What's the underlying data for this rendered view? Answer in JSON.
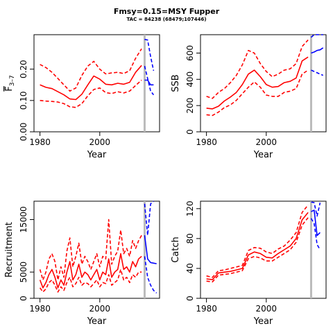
{
  "title": "Fmsy=0.15=MSY Fupper",
  "subtitle": "TAC = 84238 (68479;107446)",
  "colors": {
    "historic": "#ff0000",
    "projection": "#0000ff",
    "marker": "#bbbbbb"
  },
  "chart_data": [
    {
      "type": "line",
      "panel": "top-left",
      "xlabel": "Year",
      "ylabel": "F̅ 3–7",
      "ylabel_main": "F",
      "ylabel_sub": "3–7",
      "xlim": [
        1978,
        2020
      ],
      "ylim": [
        0,
        0.31
      ],
      "x_ticks": [
        1980,
        2000
      ],
      "y_ticks": [
        0.0,
        0.1,
        0.2
      ],
      "y_tick_labels": [
        "0.00",
        "0.10",
        "0.20"
      ],
      "marker_year": 2015,
      "series": [
        {
          "role": "median",
          "style": "solid",
          "color": "#ff0000",
          "x": [
            1980,
            1982,
            1984,
            1986,
            1988,
            1990,
            1992,
            1994,
            1996,
            1998,
            2000,
            2002,
            2004,
            2006,
            2008,
            2010,
            2012,
            2014
          ],
          "y": [
            0.15,
            0.142,
            0.138,
            0.128,
            0.118,
            0.105,
            0.103,
            0.12,
            0.15,
            0.178,
            0.168,
            0.152,
            0.15,
            0.155,
            0.152,
            0.158,
            0.19,
            0.212
          ]
        },
        {
          "role": "upper",
          "style": "dashed",
          "color": "#ff0000",
          "x": [
            1980,
            1982,
            1984,
            1986,
            1988,
            1990,
            1992,
            1994,
            1996,
            1998,
            2000,
            2002,
            2004,
            2006,
            2008,
            2010,
            2012,
            2014
          ],
          "y": [
            0.215,
            0.205,
            0.19,
            0.17,
            0.15,
            0.13,
            0.14,
            0.18,
            0.21,
            0.225,
            0.2,
            0.185,
            0.188,
            0.19,
            0.186,
            0.195,
            0.235,
            0.265
          ]
        },
        {
          "role": "lower",
          "style": "dashed",
          "color": "#ff0000",
          "x": [
            1980,
            1982,
            1984,
            1986,
            1988,
            1990,
            1992,
            1994,
            1996,
            1998,
            2000,
            2002,
            2004,
            2006,
            2008,
            2010,
            2012,
            2014
          ],
          "y": [
            0.1,
            0.098,
            0.097,
            0.095,
            0.09,
            0.08,
            0.078,
            0.09,
            0.115,
            0.135,
            0.14,
            0.125,
            0.122,
            0.128,
            0.124,
            0.13,
            0.148,
            0.165
          ]
        },
        {
          "role": "projection-median",
          "style": "solid",
          "color": "#0000ff",
          "x": [
            2015,
            2016,
            2017,
            2018
          ],
          "y": [
            0.165,
            0.165,
            0.15,
            0.15
          ]
        },
        {
          "role": "projection-upper",
          "style": "dashed",
          "color": "#0000ff",
          "x": [
            2015,
            2016,
            2017,
            2018
          ],
          "y": [
            0.295,
            0.293,
            0.24,
            0.195
          ]
        },
        {
          "role": "projection-lower",
          "style": "dashed",
          "color": "#0000ff",
          "x": [
            2015,
            2016,
            2017,
            2018
          ],
          "y": [
            0.21,
            0.17,
            0.13,
            0.118
          ]
        }
      ]
    },
    {
      "type": "line",
      "panel": "top-right",
      "xlabel": "Year",
      "ylabel": "SSB",
      "xlim": [
        1978,
        2020
      ],
      "ylim": [
        0,
        740
      ],
      "x_ticks": [
        1980,
        2000
      ],
      "y_ticks": [
        0,
        200,
        400,
        600
      ],
      "y_tick_labels": [
        "0",
        "200",
        "400",
        "600"
      ],
      "marker_year": 2015,
      "series": [
        {
          "role": "median",
          "style": "solid",
          "color": "#ff0000",
          "x": [
            1980,
            1982,
            1984,
            1986,
            1988,
            1990,
            1992,
            1994,
            1996,
            1998,
            2000,
            2002,
            2004,
            2006,
            2008,
            2010,
            2012,
            2014
          ],
          "y": [
            180,
            175,
            195,
            235,
            265,
            300,
            360,
            440,
            470,
            420,
            360,
            340,
            345,
            375,
            385,
            410,
            540,
            570
          ]
        },
        {
          "role": "upper",
          "style": "dashed",
          "color": "#ff0000",
          "x": [
            1980,
            1982,
            1984,
            1986,
            1988,
            1990,
            1992,
            1994,
            1996,
            1998,
            2000,
            2002,
            2004,
            2006,
            2008,
            2010,
            2012,
            2014
          ],
          "y": [
            270,
            255,
            300,
            330,
            375,
            430,
            510,
            620,
            600,
            520,
            460,
            420,
            440,
            470,
            480,
            520,
            650,
            700
          ]
        },
        {
          "role": "lower",
          "style": "dashed",
          "color": "#ff0000",
          "x": [
            1980,
            1982,
            1984,
            1986,
            1988,
            1990,
            1992,
            1994,
            1996,
            1998,
            2000,
            2002,
            2004,
            2006,
            2008,
            2010,
            2012,
            2014
          ],
          "y": [
            130,
            125,
            150,
            185,
            205,
            240,
            290,
            340,
            380,
            340,
            280,
            270,
            270,
            300,
            310,
            330,
            440,
            470
          ]
        },
        {
          "role": "projection-median",
          "style": "solid",
          "color": "#0000ff",
          "x": [
            2015,
            2016,
            2017,
            2018,
            2019
          ],
          "y": [
            600,
            608,
            620,
            625,
            640
          ]
        },
        {
          "role": "projection-upper",
          "style": "dashed",
          "color": "#0000ff",
          "x": [
            2015,
            2016,
            2017,
            2018,
            2019
          ],
          "y": [
            720,
            740,
            760,
            780,
            800
          ]
        },
        {
          "role": "projection-lower",
          "style": "dashed",
          "color": "#0000ff",
          "x": [
            2015,
            2016,
            2017,
            2018,
            2019
          ],
          "y": [
            470,
            460,
            450,
            440,
            430
          ]
        }
      ]
    },
    {
      "type": "line",
      "panel": "bottom-left",
      "xlabel": "Year",
      "ylabel": "Recruitment",
      "xlim": [
        1978,
        2020
      ],
      "ylim": [
        0,
        18500
      ],
      "x_ticks": [
        1980,
        2000
      ],
      "y_ticks": [
        0,
        5000,
        15000
      ],
      "y_tick_labels": [
        "0",
        "5000",
        "15000"
      ],
      "marker_year": 2015,
      "series": [
        {
          "role": "median",
          "style": "solid",
          "color": "#ff0000",
          "x": [
            1980,
            1981,
            1982,
            1983,
            1984,
            1985,
            1986,
            1987,
            1988,
            1989,
            1990,
            1991,
            1992,
            1993,
            1994,
            1995,
            1996,
            1997,
            1998,
            1999,
            2000,
            2001,
            2002,
            2003,
            2004,
            2005,
            2006,
            2007,
            2008,
            2009,
            2010,
            2011,
            2012,
            2013,
            2014
          ],
          "y": [
            3500,
            2000,
            3000,
            4500,
            5500,
            4000,
            2000,
            3500,
            2500,
            5000,
            7000,
            3500,
            4500,
            6500,
            4000,
            5000,
            4500,
            3500,
            4500,
            5500,
            3500,
            5000,
            4500,
            7500,
            4000,
            5000,
            5500,
            8500,
            5500,
            6000,
            5000,
            7000,
            6000,
            7500,
            8000
          ]
        },
        {
          "role": "upper",
          "style": "dashed",
          "color": "#ff0000",
          "x": [
            1980,
            1981,
            1982,
            1983,
            1984,
            1985,
            1986,
            1987,
            1988,
            1989,
            1990,
            1991,
            1992,
            1993,
            1994,
            1995,
            1996,
            1997,
            1998,
            1999,
            2000,
            2001,
            2002,
            2003,
            2004,
            2005,
            2006,
            2007,
            2008,
            2009,
            2010,
            2011,
            2012,
            2013,
            2014
          ],
          "y": [
            5500,
            3500,
            5000,
            7500,
            8500,
            7000,
            3500,
            6000,
            4000,
            9000,
            11500,
            6000,
            8000,
            10500,
            6500,
            8000,
            7000,
            5500,
            7000,
            8500,
            6000,
            8000,
            7500,
            15000,
            6500,
            8000,
            9000,
            13000,
            8500,
            9500,
            8000,
            11000,
            9500,
            11000,
            12000
          ]
        },
        {
          "role": "lower",
          "style": "dashed",
          "color": "#ff0000",
          "x": [
            1980,
            1981,
            1982,
            1983,
            1984,
            1985,
            1986,
            1987,
            1988,
            1989,
            1990,
            1991,
            1992,
            1993,
            1994,
            1995,
            1996,
            1997,
            1998,
            1999,
            2000,
            2001,
            2002,
            2003,
            2004,
            2005,
            2006,
            2007,
            2008,
            2009,
            2010,
            2011,
            2012,
            2013,
            2014
          ],
          "y": [
            2000,
            1200,
            1800,
            3000,
            3500,
            2500,
            1200,
            2200,
            1500,
            3000,
            4000,
            2200,
            2800,
            4000,
            2500,
            3000,
            2800,
            2200,
            2800,
            3500,
            2200,
            3000,
            2800,
            4500,
            2500,
            3000,
            3500,
            5500,
            3500,
            4000,
            3000,
            4500,
            4000,
            5000,
            5000
          ]
        },
        {
          "role": "projection-median",
          "style": "solid",
          "color": "#0000ff",
          "x": [
            2015,
            2016,
            2017,
            2018,
            2019
          ],
          "y": [
            12000,
            7500,
            6800,
            6700,
            6600
          ]
        },
        {
          "role": "projection-upper",
          "style": "dashed",
          "color": "#0000ff",
          "x": [
            2015,
            2016,
            2017,
            2018
          ],
          "y": [
            18000,
            12000,
            18000,
            18500
          ]
        },
        {
          "role": "projection-lower",
          "style": "dashed",
          "color": "#0000ff",
          "x": [
            2015,
            2016,
            2017,
            2018,
            2019
          ],
          "y": [
            8000,
            4000,
            2500,
            1500,
            1000
          ]
        }
      ]
    },
    {
      "type": "line",
      "panel": "bottom-right",
      "xlabel": "Year",
      "ylabel": "Catch",
      "xlim": [
        1978,
        2020
      ],
      "ylim": [
        0,
        130
      ],
      "x_ticks": [
        1980,
        2000
      ],
      "y_ticks": [
        0,
        40,
        80,
        120
      ],
      "y_tick_labels": [
        "0",
        "40",
        "80",
        "120"
      ],
      "marker_year": 2015,
      "series": [
        {
          "role": "median",
          "style": "solid",
          "color": "#ff0000",
          "x": [
            1980,
            1982,
            1984,
            1986,
            1988,
            1990,
            1992,
            1994,
            1996,
            1998,
            2000,
            2002,
            2004,
            2006,
            2008,
            2010,
            2012,
            2014
          ],
          "y": [
            26,
            25,
            34,
            35,
            36,
            38,
            40,
            58,
            62,
            60,
            55,
            54,
            60,
            65,
            70,
            80,
            105,
            115
          ]
        },
        {
          "role": "upper",
          "style": "dashed",
          "color": "#ff0000",
          "x": [
            1980,
            1982,
            1984,
            1986,
            1988,
            1990,
            1992,
            1994,
            1996,
            1998,
            2000,
            2002,
            2004,
            2006,
            2008,
            2010,
            2012,
            2014
          ],
          "y": [
            30,
            28,
            37,
            38,
            40,
            42,
            44,
            64,
            68,
            67,
            62,
            60,
            66,
            70,
            78,
            88,
            115,
            125
          ]
        },
        {
          "role": "lower",
          "style": "dashed",
          "color": "#ff0000",
          "x": [
            1980,
            1982,
            1984,
            1986,
            1988,
            1990,
            1992,
            1994,
            1996,
            1998,
            2000,
            2002,
            2004,
            2006,
            2008,
            2010,
            2012,
            2014
          ],
          "y": [
            23,
            22,
            31,
            32,
            33,
            35,
            37,
            53,
            56,
            54,
            50,
            50,
            55,
            60,
            65,
            75,
            98,
            108
          ]
        },
        {
          "role": "projection-median",
          "style": "solid",
          "color": "#0000ff",
          "x": [
            2015,
            2016,
            2017,
            2018
          ],
          "y": [
            116,
            118,
            84,
            88
          ]
        },
        {
          "role": "projection-upper",
          "style": "dashed",
          "color": "#0000ff",
          "x": [
            2015,
            2016,
            2017,
            2018
          ],
          "y": [
            129,
            128,
            110,
            128
          ]
        },
        {
          "role": "projection-lower",
          "style": "dashed",
          "color": "#0000ff",
          "x": [
            2015,
            2016,
            2017,
            2018
          ],
          "y": [
            107,
            100,
            72,
            65
          ]
        }
      ]
    }
  ]
}
